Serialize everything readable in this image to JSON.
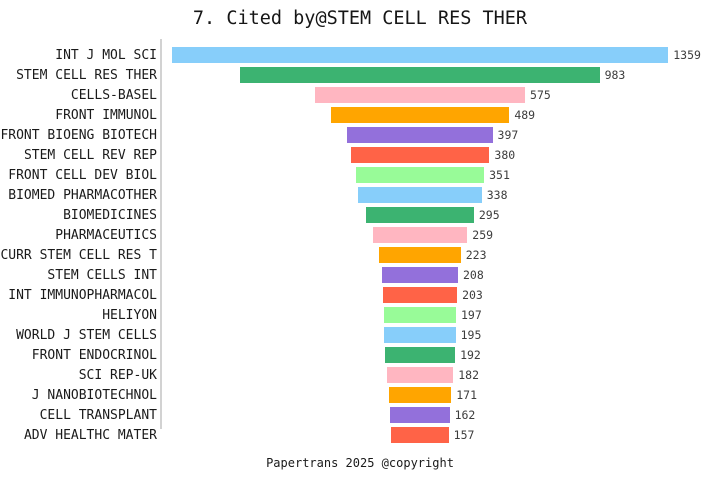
{
  "chart_data": {
    "type": "bar",
    "orientation": "horizontal",
    "style": "centered-funnel",
    "title": "7. Cited by@STEM CELL RES THER",
    "footer": "Papertrans 2025 @copyright",
    "categories": [
      "INT J MOL SCI",
      "STEM CELL RES THER",
      "CELLS-BASEL",
      "FRONT IMMUNOL",
      "FRONT BIOENG BIOTECH",
      "STEM CELL REV REP",
      "FRONT CELL DEV BIOL",
      "BIOMED PHARMACOTHER",
      "BIOMEDICINES",
      "PHARMACEUTICS",
      "CURR STEM CELL RES T",
      "STEM CELLS INT",
      "INT IMMUNOPHARMACOL",
      "HELIYON",
      "WORLD J STEM CELLS",
      "FRONT ENDOCRINOL",
      "SCI REP-UK",
      "J NANOBIOTECHNOL",
      "CELL TRANSPLANT",
      "ADV HEALTHC MATER"
    ],
    "values": [
      1359,
      983,
      575,
      489,
      397,
      380,
      351,
      338,
      295,
      259,
      223,
      208,
      203,
      197,
      195,
      192,
      182,
      171,
      162,
      157
    ],
    "value_labels_shown": true,
    "color_cycle": [
      "#87CEFA",
      "#3CB371",
      "#FFB6C1",
      "#FFA500",
      "#9370DB",
      "#FF6347",
      "#98FB98"
    ],
    "axis_line_color": "#d2d2d2",
    "grid": false,
    "legend": false,
    "ylabel": "",
    "xlabel": ""
  }
}
